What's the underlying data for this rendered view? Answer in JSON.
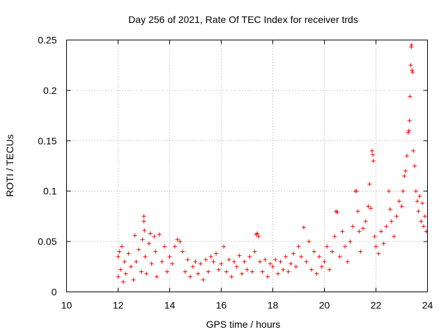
{
  "chart_data": {
    "type": "scatter",
    "title": "Day 256 of 2021, Rate Of TEC Index for receiver trds",
    "xlabel": "GPS time / hours",
    "ylabel": "ROTI / TECUs",
    "xlim": [
      10,
      24
    ],
    "ylim": [
      0,
      0.25
    ],
    "x_ticks": [
      10,
      12,
      14,
      16,
      18,
      20,
      22,
      24
    ],
    "y_ticks": [
      0,
      0.05,
      0.1,
      0.15,
      0.2,
      0.25
    ],
    "x_tick_labels": [
      "10",
      "12",
      "14",
      "16",
      "18",
      "20",
      "22",
      "24"
    ],
    "y_tick_labels": [
      "0",
      "0.05",
      "0.1",
      "0.15",
      "0.2",
      "0.25"
    ],
    "grid": true,
    "marker": "+",
    "marker_color": "#ff0000",
    "series": [
      {
        "name": "ROTI",
        "points": [
          [
            12.0,
            0.015
          ],
          [
            12.0,
            0.035
          ],
          [
            12.05,
            0.04
          ],
          [
            12.1,
            0.022
          ],
          [
            12.15,
            0.045
          ],
          [
            12.2,
            0.01
          ],
          [
            12.25,
            0.03
          ],
          [
            12.3,
            0.018
          ],
          [
            12.4,
            0.038
          ],
          [
            12.5,
            0.025
          ],
          [
            12.6,
            0.012
          ],
          [
            12.65,
            0.056
          ],
          [
            12.7,
            0.03
          ],
          [
            12.8,
            0.042
          ],
          [
            12.9,
            0.02
          ],
          [
            12.95,
            0.052
          ],
          [
            13.0,
            0.075
          ],
          [
            13.0,
            0.07
          ],
          [
            13.02,
            0.061
          ],
          [
            13.05,
            0.035
          ],
          [
            13.1,
            0.018
          ],
          [
            13.2,
            0.048
          ],
          [
            13.25,
            0.058
          ],
          [
            13.3,
            0.028
          ],
          [
            13.4,
            0.055
          ],
          [
            13.45,
            0.04
          ],
          [
            13.5,
            0.015
          ],
          [
            13.6,
            0.057
          ],
          [
            13.7,
            0.03
          ],
          [
            13.8,
            0.045
          ],
          [
            13.9,
            0.02
          ],
          [
            14.0,
            0.035
          ],
          [
            14.1,
            0.028
          ],
          [
            14.2,
            0.045
          ],
          [
            14.3,
            0.052
          ],
          [
            14.4,
            0.05
          ],
          [
            14.5,
            0.04
          ],
          [
            14.6,
            0.02
          ],
          [
            14.7,
            0.032
          ],
          [
            14.8,
            0.015
          ],
          [
            14.9,
            0.025
          ],
          [
            15.0,
            0.03
          ],
          [
            15.1,
            0.018
          ],
          [
            15.2,
            0.028
          ],
          [
            15.3,
            0.012
          ],
          [
            15.4,
            0.032
          ],
          [
            15.5,
            0.02
          ],
          [
            15.6,
            0.035
          ],
          [
            15.7,
            0.03
          ],
          [
            15.8,
            0.038
          ],
          [
            15.9,
            0.022
          ],
          [
            16.0,
            0.028
          ],
          [
            16.1,
            0.045
          ],
          [
            16.2,
            0.02
          ],
          [
            16.3,
            0.032
          ],
          [
            16.4,
            0.015
          ],
          [
            16.5,
            0.03
          ],
          [
            16.6,
            0.025
          ],
          [
            16.7,
            0.036
          ],
          [
            16.8,
            0.018
          ],
          [
            16.9,
            0.03
          ],
          [
            17.0,
            0.022
          ],
          [
            17.1,
            0.035
          ],
          [
            17.2,
            0.02
          ],
          [
            17.3,
            0.04
          ],
          [
            17.35,
            0.057
          ],
          [
            17.4,
            0.058
          ],
          [
            17.45,
            0.055
          ],
          [
            17.5,
            0.03
          ],
          [
            17.6,
            0.02
          ],
          [
            17.7,
            0.032
          ],
          [
            17.8,
            0.015
          ],
          [
            17.9,
            0.028
          ],
          [
            18.0,
            0.025
          ],
          [
            18.1,
            0.032
          ],
          [
            18.2,
            0.018
          ],
          [
            18.3,
            0.03
          ],
          [
            18.4,
            0.022
          ],
          [
            18.5,
            0.035
          ],
          [
            18.6,
            0.02
          ],
          [
            18.7,
            0.028
          ],
          [
            18.8,
            0.038
          ],
          [
            18.9,
            0.025
          ],
          [
            19.0,
            0.045
          ],
          [
            19.1,
            0.035
          ],
          [
            19.2,
            0.064
          ],
          [
            19.3,
            0.03
          ],
          [
            19.4,
            0.05
          ],
          [
            19.5,
            0.022
          ],
          [
            19.6,
            0.04
          ],
          [
            19.7,
            0.018
          ],
          [
            19.8,
            0.035
          ],
          [
            19.9,
            0.025
          ],
          [
            20.0,
            0.03
          ],
          [
            20.1,
            0.045
          ],
          [
            20.2,
            0.022
          ],
          [
            20.3,
            0.04
          ],
          [
            20.4,
            0.055
          ],
          [
            20.45,
            0.08
          ],
          [
            20.5,
            0.079
          ],
          [
            20.6,
            0.035
          ],
          [
            20.7,
            0.06
          ],
          [
            20.8,
            0.045
          ],
          [
            20.9,
            0.03
          ],
          [
            21.0,
            0.05
          ],
          [
            21.1,
            0.065
          ],
          [
            21.2,
            0.1
          ],
          [
            21.25,
            0.1
          ],
          [
            21.3,
            0.08
          ],
          [
            21.35,
            0.06
          ],
          [
            21.4,
            0.04
          ],
          [
            21.5,
            0.063
          ],
          [
            21.6,
            0.07
          ],
          [
            21.7,
            0.085
          ],
          [
            21.75,
            0.107
          ],
          [
            21.8,
            0.083
          ],
          [
            21.85,
            0.14
          ],
          [
            21.88,
            0.136
          ],
          [
            21.9,
            0.13
          ],
          [
            21.95,
            0.055
          ],
          [
            22.0,
            0.045
          ],
          [
            22.1,
            0.038
          ],
          [
            22.2,
            0.06
          ],
          [
            22.3,
            0.048
          ],
          [
            22.4,
            0.065
          ],
          [
            22.5,
            0.1
          ],
          [
            22.55,
            0.082
          ],
          [
            22.6,
            0.07
          ],
          [
            22.7,
            0.055
          ],
          [
            22.8,
            0.075
          ],
          [
            22.9,
            0.09
          ],
          [
            23.0,
            0.085
          ],
          [
            23.05,
            0.1
          ],
          [
            23.1,
            0.115
          ],
          [
            23.15,
            0.12
          ],
          [
            23.2,
            0.135
          ],
          [
            23.25,
            0.158
          ],
          [
            23.28,
            0.16
          ],
          [
            23.3,
            0.17
          ],
          [
            23.32,
            0.194
          ],
          [
            23.35,
            0.225
          ],
          [
            23.37,
            0.243
          ],
          [
            23.38,
            0.245
          ],
          [
            23.4,
            0.22
          ],
          [
            23.42,
            0.218
          ],
          [
            23.45,
            0.14
          ],
          [
            23.5,
            0.125
          ],
          [
            23.55,
            0.1
          ],
          [
            23.6,
            0.09
          ],
          [
            23.65,
            0.08
          ],
          [
            23.7,
            0.095
          ],
          [
            23.75,
            0.07
          ],
          [
            23.8,
            0.088
          ],
          [
            23.85,
            0.065
          ],
          [
            23.9,
            0.075
          ],
          [
            23.95,
            0.06
          ]
        ]
      }
    ]
  }
}
